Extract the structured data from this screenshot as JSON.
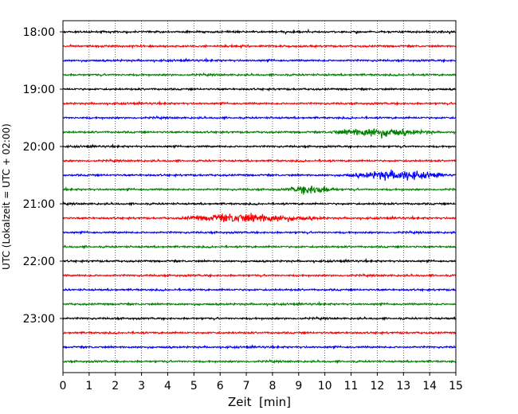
{
  "chart_data": {
    "type": "line",
    "title": "",
    "xlabel": "Zeit  [min]",
    "ylabel": "UTC (Lokalzeit = UTC + 02:00)",
    "xlim": [
      0,
      15
    ],
    "x_ticks": [
      0,
      1,
      2,
      3,
      4,
      5,
      6,
      7,
      8,
      9,
      10,
      11,
      12,
      13,
      14,
      15
    ],
    "y_tick_labels": [
      "18:00",
      "19:00",
      "20:00",
      "21:00",
      "22:00",
      "23:00"
    ],
    "grid": "vertical dotted",
    "trace_interval_minutes": 15,
    "trace_colors": [
      "#000000",
      "#ff0000",
      "#0000ff",
      "#008000"
    ],
    "traces": [
      {
        "start": "18:00",
        "events": []
      },
      {
        "start": "18:15",
        "events": []
      },
      {
        "start": "18:30",
        "events": []
      },
      {
        "start": "18:45",
        "events": []
      },
      {
        "start": "19:00",
        "events": []
      },
      {
        "start": "19:15",
        "events": []
      },
      {
        "start": "19:30",
        "events": []
      },
      {
        "start": "19:45",
        "events": [
          {
            "from": 10.2,
            "to": 14.2,
            "peak": 12.0
          }
        ]
      },
      {
        "start": "20:00",
        "events": []
      },
      {
        "start": "20:15",
        "events": []
      },
      {
        "start": "20:30",
        "events": [
          {
            "from": 10.6,
            "to": 14.6,
            "peak": 12.8
          }
        ]
      },
      {
        "start": "20:45",
        "events": [
          {
            "from": 8.5,
            "to": 10.5,
            "peak": 9.5
          }
        ]
      },
      {
        "start": "21:00",
        "events": []
      },
      {
        "start": "21:15",
        "events": [
          {
            "from": 4.5,
            "to": 10.0,
            "peak": 7.0
          }
        ]
      },
      {
        "start": "21:30",
        "events": []
      },
      {
        "start": "21:45",
        "events": []
      },
      {
        "start": "22:00",
        "events": []
      },
      {
        "start": "22:15",
        "events": []
      },
      {
        "start": "22:30",
        "events": []
      },
      {
        "start": "22:45",
        "events": []
      },
      {
        "start": "23:00",
        "events": []
      },
      {
        "start": "23:15",
        "events": []
      },
      {
        "start": "23:30",
        "events": []
      },
      {
        "start": "23:45",
        "events": []
      }
    ]
  }
}
